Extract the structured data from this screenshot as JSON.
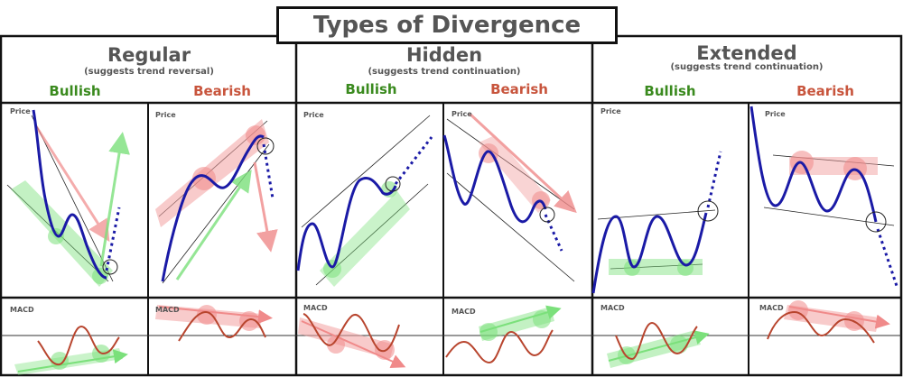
{
  "title": "Types of Divergence",
  "groups": [
    {
      "name": "Regular",
      "subtitle": "(suggests trend reversal)",
      "bullish": "Bullish",
      "bearish": "Bearish"
    },
    {
      "name": "Hidden",
      "subtitle": "(suggests trend continuation)",
      "bullish": "Bullish",
      "bearish": "Bearish"
    },
    {
      "name": "Extended",
      "subtitle": "(suggests trend continuation)",
      "bullish": "Bullish",
      "bearish": "Bearish"
    }
  ],
  "panel_labels": {
    "price": "Price",
    "macd": "MACD"
  },
  "colors": {
    "price_line": "#1a1aa6",
    "macd_line": "#b8452e",
    "bull": "#3a8a1e",
    "bear": "#c8553d",
    "green_fill": "#7be07b",
    "red_fill": "#f2a0a0"
  }
}
